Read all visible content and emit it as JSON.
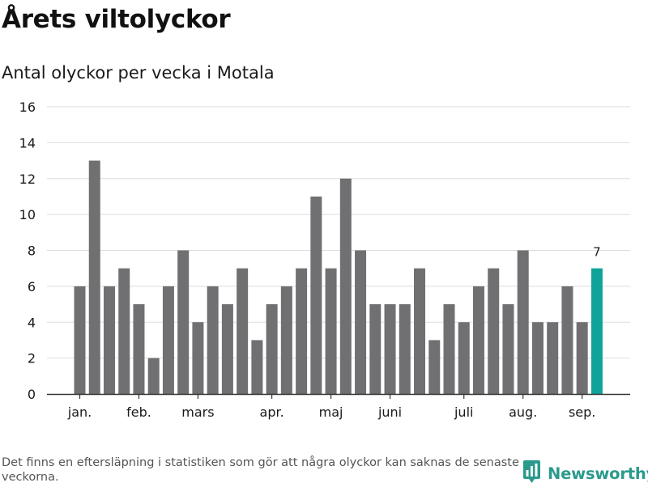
{
  "title": "Årets viltolyckor",
  "subtitle": "Antal olyckor per vecka i Motala",
  "footnote": "Det finns en eftersläpning i statistiken som gör att några olyckor kan saknas de senaste veckorna.",
  "brand": {
    "name": "Newsworthy",
    "icon": "bar-chart-icon",
    "color": "#2a9a8c"
  },
  "colors": {
    "bar": "#707073",
    "highlight": "#0fa39a",
    "grid": "#dddddd",
    "axis": "#333333"
  },
  "chart_data": {
    "type": "bar",
    "title": "Årets viltolyckor",
    "subtitle": "Antal olyckor per vecka i Motala",
    "xlabel": "",
    "ylabel": "",
    "values": [
      6,
      13,
      6,
      7,
      5,
      2,
      6,
      8,
      4,
      6,
      5,
      7,
      3,
      5,
      6,
      7,
      11,
      7,
      12,
      8,
      5,
      5,
      5,
      7,
      3,
      5,
      4,
      6,
      7,
      5,
      8,
      4,
      4,
      6,
      4,
      7
    ],
    "highlight_index": 35,
    "highlight_label": "7",
    "ylim": [
      0,
      16
    ],
    "yticks": [
      0,
      2,
      4,
      6,
      8,
      10,
      12,
      14,
      16
    ],
    "month_ticks": [
      {
        "label": "jan.",
        "index": 0
      },
      {
        "label": "feb.",
        "index": 4
      },
      {
        "label": "mars",
        "index": 8
      },
      {
        "label": "apr.",
        "index": 13
      },
      {
        "label": "maj",
        "index": 17
      },
      {
        "label": "juni",
        "index": 21
      },
      {
        "label": "juli",
        "index": 26
      },
      {
        "label": "aug.",
        "index": 30
      },
      {
        "label": "sep.",
        "index": 34
      }
    ],
    "grid": true,
    "legend": "none"
  }
}
